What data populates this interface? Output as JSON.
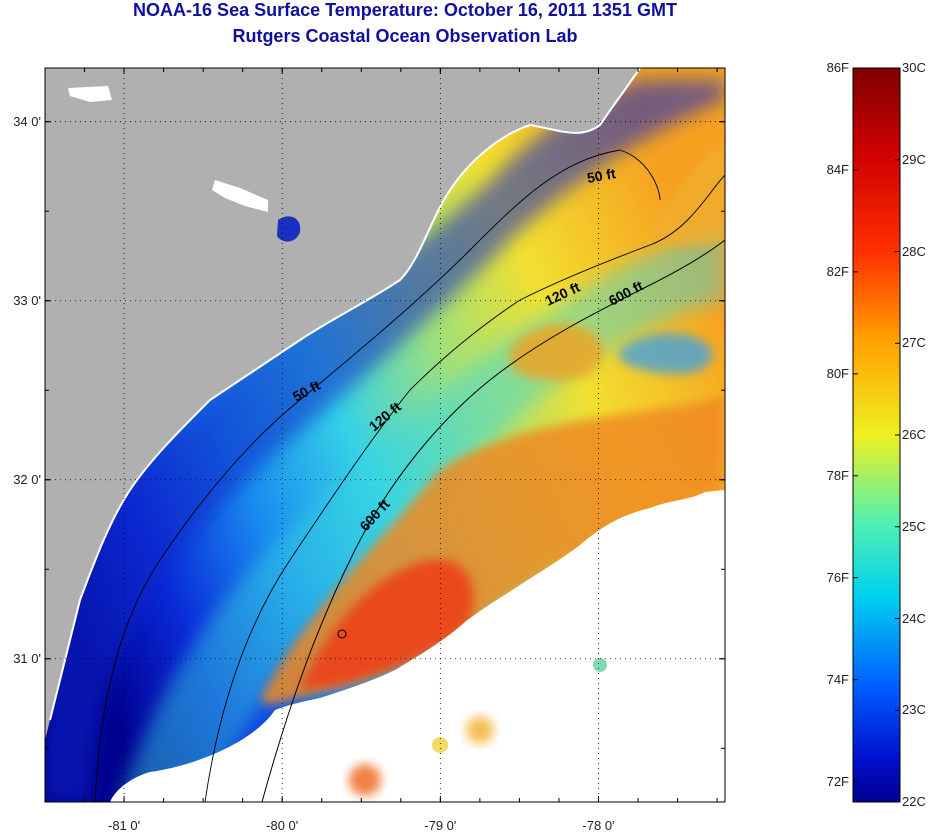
{
  "header": {
    "title": "NOAA-16 Sea Surface Temperature:  October 16, 2011 1351 GMT",
    "subtitle": "Rutgers Coastal Ocean Observation Lab"
  },
  "map": {
    "lat_labels": [
      {
        "value": 34.0,
        "text": "34 0'"
      },
      {
        "value": 33.0,
        "text": "33 0'"
      },
      {
        "value": 32.0,
        "text": "32 0'"
      },
      {
        "value": 31.0,
        "text": "31 0'"
      }
    ],
    "lon_labels": [
      {
        "value": -81.0,
        "text": "-81 0'"
      },
      {
        "value": -80.0,
        "text": "-80 0'"
      },
      {
        "value": -79.0,
        "text": "-79 0'"
      },
      {
        "value": -78.0,
        "text": "-78 0'"
      }
    ],
    "bounds": {
      "lon_min": -81.5,
      "lon_max": -77.2,
      "lat_min": 30.2,
      "lat_max": 34.3
    },
    "contour_labels": [
      "50 ft",
      "120 ft",
      "600 ft",
      "50 ft",
      "120 ft",
      "600 ft"
    ],
    "colors": {
      "land": "#b0b0b0",
      "cloud": "#ffffff"
    }
  },
  "colorbar": {
    "celsius": [
      "30C",
      "29C",
      "28C",
      "27C",
      "26C",
      "25C",
      "24C",
      "23C",
      "22C"
    ],
    "fahrenheit": [
      "86F",
      "84F",
      "82F",
      "80F",
      "78F",
      "76F",
      "74F",
      "72F"
    ],
    "c_values": [
      30,
      29,
      28,
      27,
      26,
      25,
      24,
      23,
      22
    ],
    "f_values": [
      86,
      84,
      82,
      80,
      78,
      76,
      74,
      72
    ],
    "range_c": [
      22,
      30
    ]
  }
}
